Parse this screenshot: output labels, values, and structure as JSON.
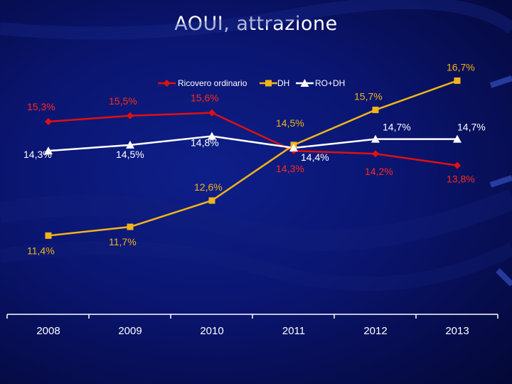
{
  "title": "AOUI, attrazione",
  "colors": {
    "ricovero": "#e01010",
    "dh": "#f2b418",
    "ro_dh": "#ffffff",
    "axis": "#ffffff",
    "label_red": "#ff2a1a",
    "label_gold": "#f2b418"
  },
  "chart_data": {
    "type": "line",
    "title": "AOUI, attrazione",
    "categories": [
      "2008",
      "2009",
      "2010",
      "2011",
      "2012",
      "2013"
    ],
    "xlabel": "",
    "ylabel": "",
    "ylim": [
      9,
      18
    ],
    "grid": false,
    "legend_position": "top-center",
    "series": [
      {
        "name": "Ricovero ordinario",
        "key": "ricovero",
        "marker": "diamond",
        "values": [
          15.3,
          15.5,
          15.6,
          14.3,
          14.2,
          13.8
        ],
        "labels": [
          "15,3%",
          "15,5%",
          "15,6%",
          "14,3%",
          "14,2%",
          "13,8%"
        ]
      },
      {
        "name": "DH",
        "key": "dh",
        "marker": "square",
        "values": [
          11.4,
          11.7,
          12.6,
          14.5,
          15.7,
          16.7
        ],
        "labels": [
          "11,4%",
          "11,7%",
          "12,6%",
          "14,5%",
          "15,7%",
          "16,7%"
        ]
      },
      {
        "name": "RO+DH",
        "key": "ro_dh",
        "marker": "triangle",
        "values": [
          14.3,
          14.5,
          14.8,
          14.4,
          14.7,
          14.7
        ],
        "labels": [
          "14,3%",
          "14,5%",
          "14,8%",
          "14,4%",
          "14,7%",
          "14,7%"
        ]
      }
    ]
  }
}
